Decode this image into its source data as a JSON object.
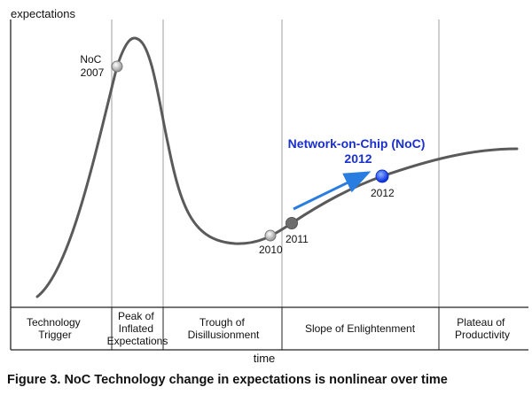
{
  "diagram": {
    "y_axis_label": "expectations",
    "x_axis_label": "time",
    "phases": [
      {
        "lines": [
          "Technology",
          "Trigger"
        ]
      },
      {
        "lines": [
          "Peak of",
          "Inflated",
          "Expectations"
        ]
      },
      {
        "lines": [
          "Trough of",
          "Disillusionment"
        ]
      },
      {
        "lines": [
          "Slope of Enlightenment"
        ]
      },
      {
        "lines": [
          "Plateau of",
          "Productivity"
        ]
      }
    ],
    "points": [
      {
        "id": "noc-2007",
        "lines": [
          "NoC",
          "2007"
        ],
        "color": "#c8c8c8"
      },
      {
        "id": "point-2010",
        "lines": [
          "2010"
        ],
        "color": "#a8a8a8"
      },
      {
        "id": "point-2011",
        "lines": [
          "2011"
        ],
        "color": "#6e6e6e"
      },
      {
        "id": "point-2012",
        "lines": [
          "2012"
        ],
        "color": "#1040ff"
      }
    ],
    "callout": {
      "lines": [
        "Network-on-Chip (NoC)",
        "2012"
      ],
      "color": "#1a2fd0"
    },
    "colors": {
      "curve": "#5a5a5a",
      "gridline": "#cfcfcf",
      "arrow": "#2a7de0",
      "axis": "#222222"
    }
  },
  "caption": "Figure 3. NoC Technology change in expectations is nonlinear over time"
}
